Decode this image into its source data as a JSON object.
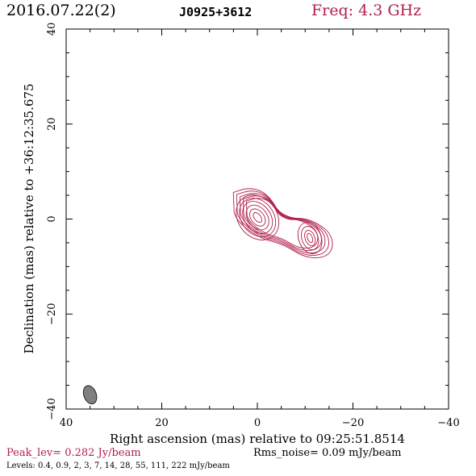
{
  "header": {
    "date": "2016.07.22(2)",
    "source": "J0925+3612",
    "freq": "Freq: 4.3 GHz"
  },
  "footer": {
    "peak": "Peak_lev=  0.282 Jy/beam",
    "rms": "Rms_noise= 0.09 mJy/beam",
    "levels": "Levels: 0.4, 0.9,   2,   3,   7,  14,  28,  55, 111, 222 mJy/beam"
  },
  "colors": {
    "contour": "#b0204a",
    "beam": "#808080",
    "title_accent": "#b0204a"
  },
  "chart_data": {
    "type": "contour",
    "xlabel": "Right ascension (mas) relative to 09:25:51.8514",
    "ylabel": "Declination (mas) relative to +36:12:35.675",
    "xlim": [
      40,
      -40
    ],
    "ylim": [
      -40,
      40
    ],
    "xticks": [
      40,
      20,
      0,
      -20,
      -40
    ],
    "yticks": [
      -40,
      -20,
      0,
      20,
      40
    ],
    "xtick_labels": [
      "40",
      "20",
      "0",
      "−20",
      "−40"
    ],
    "ytick_labels": [
      "−40",
      "−20",
      "0",
      "20",
      "40"
    ],
    "beam": {
      "x": 35,
      "y": -37,
      "major": 4,
      "minor": 2.6,
      "angle_deg": -20
    },
    "contours": {
      "levels_mJy": [
        0.4,
        0.9,
        2,
        3,
        7,
        14,
        28,
        55,
        111,
        222
      ],
      "core": {
        "x": 0.3,
        "y": 0.5
      },
      "secondary": {
        "x": -11,
        "y": -4
      },
      "extent_x": [
        4.5,
        -16
      ],
      "extent_y": [
        -9.5,
        6
      ]
    }
  }
}
